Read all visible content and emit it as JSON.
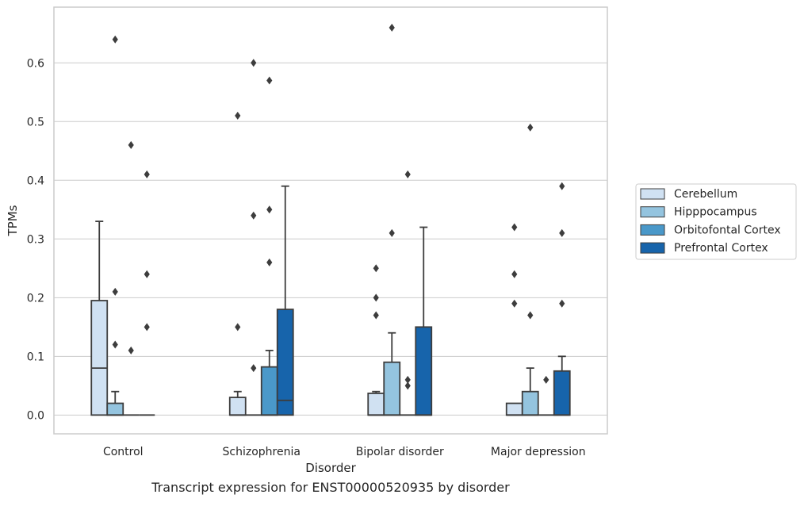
{
  "caption": "Transcript expression for ENST00000520935 by disorder",
  "colors": {
    "Cerebellum": "#d0e1f2",
    "Hipppocampus": "#94c4df",
    "Orbitofontal Cortex": "#4a98c9",
    "Prefrontal Cortex": "#1764ab",
    "box_edge": "#3d3d3d",
    "grid": "#cccccc",
    "frame": "#cccccc",
    "outlier": "#3d3d3d"
  },
  "chart_data": {
    "type": "box",
    "title": "",
    "xlabel": "Disorder",
    "ylabel": "TPMs",
    "ylim": [
      -0.032,
      0.695
    ],
    "yticks": [
      0.0,
      0.1,
      0.2,
      0.3,
      0.4,
      0.5,
      0.6
    ],
    "ytick_labels": [
      "0.0",
      "0.1",
      "0.2",
      "0.3",
      "0.4",
      "0.5",
      "0.6"
    ],
    "grid": true,
    "legend_position": "right",
    "categories": [
      "Control",
      "Schizophrenia",
      "Bipolar disorder",
      "Major depression"
    ],
    "series": [
      {
        "name": "Cerebellum",
        "boxes": [
          {
            "q1": 0.0,
            "median": 0.08,
            "q3": 0.195,
            "whisker_low": 0.0,
            "whisker_high": 0.33,
            "outliers": []
          },
          {
            "q1": 0.0,
            "median": 0.0,
            "q3": 0.03,
            "whisker_low": 0.0,
            "whisker_high": 0.04,
            "outliers": [
              0.15,
              0.51
            ]
          },
          {
            "q1": 0.0,
            "median": 0.0,
            "q3": 0.037,
            "whisker_low": 0.0,
            "whisker_high": 0.04,
            "outliers": [
              0.17,
              0.2,
              0.25
            ]
          },
          {
            "q1": 0.0,
            "median": 0.0,
            "q3": 0.02,
            "whisker_low": 0.0,
            "whisker_high": 0.02,
            "outliers": [
              0.19,
              0.24,
              0.32
            ]
          }
        ]
      },
      {
        "name": "Hipppocampus",
        "boxes": [
          {
            "q1": 0.0,
            "median": 0.0,
            "q3": 0.02,
            "whisker_low": 0.0,
            "whisker_high": 0.04,
            "outliers": [
              0.12,
              0.21,
              0.64
            ]
          },
          {
            "q1": 0.0,
            "median": 0.0,
            "q3": 0.0,
            "whisker_low": 0.0,
            "whisker_high": 0.0,
            "outliers": [
              0.08,
              0.34,
              0.6
            ]
          },
          {
            "q1": 0.0,
            "median": 0.0,
            "q3": 0.09,
            "whisker_low": 0.0,
            "whisker_high": 0.14,
            "outliers": [
              0.31,
              0.66
            ]
          },
          {
            "q1": 0.0,
            "median": 0.0,
            "q3": 0.04,
            "whisker_low": 0.0,
            "whisker_high": 0.08,
            "outliers": [
              0.17,
              0.49
            ]
          }
        ]
      },
      {
        "name": "Orbitofontal Cortex",
        "boxes": [
          {
            "q1": 0.0,
            "median": 0.0,
            "q3": 0.0,
            "whisker_low": 0.0,
            "whisker_high": 0.0,
            "outliers": [
              0.11,
              0.46
            ]
          },
          {
            "q1": 0.0,
            "median": 0.0,
            "q3": 0.082,
            "whisker_low": 0.0,
            "whisker_high": 0.11,
            "outliers": [
              0.26,
              0.35,
              0.57
            ]
          },
          {
            "q1": 0.0,
            "median": 0.0,
            "q3": 0.0,
            "whisker_low": 0.0,
            "whisker_high": 0.0,
            "outliers": [
              0.05,
              0.06,
              0.41
            ]
          },
          {
            "q1": 0.0,
            "median": 0.0,
            "q3": 0.0,
            "whisker_low": 0.0,
            "whisker_high": 0.0,
            "outliers": [
              0.06
            ]
          }
        ]
      },
      {
        "name": "Prefrontal Cortex",
        "boxes": [
          {
            "q1": 0.0,
            "median": 0.0,
            "q3": 0.0,
            "whisker_low": 0.0,
            "whisker_high": 0.0,
            "outliers": [
              0.15,
              0.24,
              0.41
            ]
          },
          {
            "q1": 0.0,
            "median": 0.025,
            "q3": 0.18,
            "whisker_low": 0.0,
            "whisker_high": 0.39,
            "outliers": []
          },
          {
            "q1": 0.0,
            "median": 0.0,
            "q3": 0.15,
            "whisker_low": 0.0,
            "whisker_high": 0.32,
            "outliers": []
          },
          {
            "q1": 0.0,
            "median": 0.0,
            "q3": 0.075,
            "whisker_low": 0.0,
            "whisker_high": 0.1,
            "outliers": [
              0.19,
              0.31,
              0.39
            ]
          }
        ]
      }
    ]
  }
}
